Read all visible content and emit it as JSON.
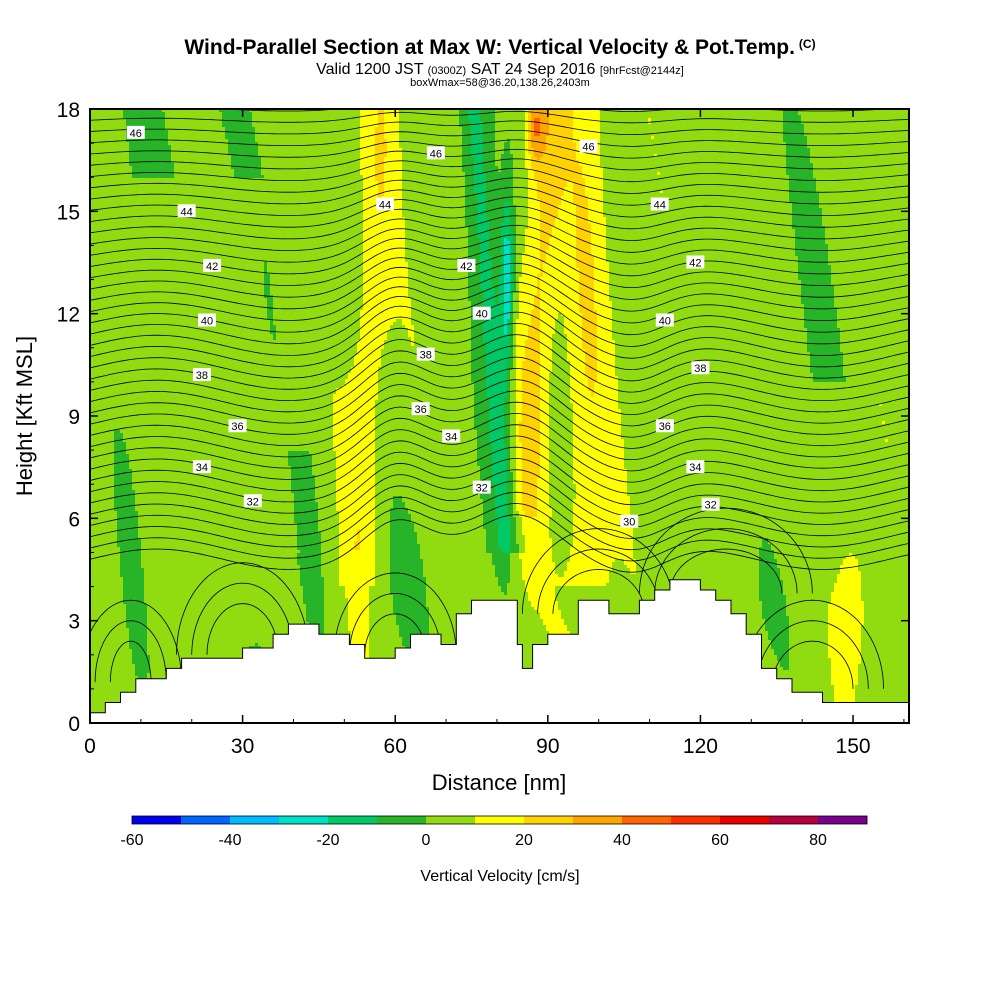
{
  "title": {
    "main": "Wind-Parallel Section at Max W: Vertical Velocity & Pot.Temp.",
    "copyright": "(C)",
    "valid_prefix": "Valid 1200 JST",
    "valid_utc": "(0300Z)",
    "valid_date": "SAT 24 Sep 2016",
    "forecast": "[9hrFcst@2144z]",
    "boxinfo": "boxWmax=58@36.20,138.26,2403m"
  },
  "chart_data": {
    "type": "heatmap",
    "xlabel": "Distance [nm]",
    "ylabel": "Height [Kft MSL]",
    "xlim": [
      0,
      161
    ],
    "ylim": [
      0,
      18
    ],
    "x_ticks": [
      "0",
      "30",
      "60",
      "90",
      "120",
      "150"
    ],
    "y_ticks": [
      "0",
      "3",
      "6",
      "9",
      "12",
      "15",
      "18"
    ],
    "colorbar": {
      "label": "Vertical Velocity [cm/s]",
      "bins": [
        -60,
        -50,
        -40,
        -30,
        -20,
        -10,
        0,
        10,
        20,
        30,
        40,
        50,
        60,
        70,
        80,
        90
      ],
      "tick_labels": [
        "-60",
        "-40",
        "-20",
        "0",
        "20",
        "40",
        "60",
        "80"
      ],
      "colors": [
        "#0000ee",
        "#0066ff",
        "#00bbff",
        "#00e0c8",
        "#00c864",
        "#28b428",
        "#90dc10",
        "#ffff00",
        "#ffd200",
        "#ffa500",
        "#ff6400",
        "#ff2d00",
        "#e60000",
        "#b4003c",
        "#78008c"
      ]
    },
    "terrain": [
      [
        0,
        0.3
      ],
      [
        3,
        0.3
      ],
      [
        3,
        0.6
      ],
      [
        6,
        0.6
      ],
      [
        6,
        0.9
      ],
      [
        9,
        0.9
      ],
      [
        9,
        1.3
      ],
      [
        15,
        1.3
      ],
      [
        15,
        1.6
      ],
      [
        18,
        1.6
      ],
      [
        18,
        1.9
      ],
      [
        30,
        1.9
      ],
      [
        30,
        2.2
      ],
      [
        36,
        2.2
      ],
      [
        36,
        2.6
      ],
      [
        39,
        2.6
      ],
      [
        39,
        2.9
      ],
      [
        45,
        2.9
      ],
      [
        45,
        2.6
      ],
      [
        51,
        2.6
      ],
      [
        51,
        2.3
      ],
      [
        54,
        2.3
      ],
      [
        54,
        1.9
      ],
      [
        60,
        1.9
      ],
      [
        60,
        2.2
      ],
      [
        63,
        2.2
      ],
      [
        63,
        2.6
      ],
      [
        69,
        2.6
      ],
      [
        69,
        2.3
      ],
      [
        72,
        2.3
      ],
      [
        72,
        3.2
      ],
      [
        75,
        3.2
      ],
      [
        75,
        3.6
      ],
      [
        84,
        3.6
      ],
      [
        84,
        2.3
      ],
      [
        85,
        2.3
      ],
      [
        85,
        1.6
      ],
      [
        87,
        1.6
      ],
      [
        87,
        2.3
      ],
      [
        90,
        2.3
      ],
      [
        90,
        2.6
      ],
      [
        96,
        2.6
      ],
      [
        96,
        3.6
      ],
      [
        102,
        3.6
      ],
      [
        102,
        3.2
      ],
      [
        108,
        3.2
      ],
      [
        108,
        3.6
      ],
      [
        111,
        3.6
      ],
      [
        111,
        3.9
      ],
      [
        114,
        3.9
      ],
      [
        114,
        4.2
      ],
      [
        120,
        4.2
      ],
      [
        120,
        3.9
      ],
      [
        123,
        3.9
      ],
      [
        123,
        3.6
      ],
      [
        126,
        3.6
      ],
      [
        126,
        3.2
      ],
      [
        129,
        3.2
      ],
      [
        129,
        2.6
      ],
      [
        132,
        2.6
      ],
      [
        132,
        1.6
      ],
      [
        135,
        1.6
      ],
      [
        135,
        1.3
      ],
      [
        138,
        1.3
      ],
      [
        138,
        0.9
      ],
      [
        144,
        0.9
      ],
      [
        144,
        0.6
      ],
      [
        150,
        0.6
      ],
      [
        150,
        0.6
      ],
      [
        161,
        0.6
      ]
    ],
    "theta_levels": [
      30,
      32,
      34,
      36,
      38,
      40,
      42,
      44,
      46
    ],
    "contour_labels": [
      {
        "t": "46",
        "x": 9,
        "y": 17.3
      },
      {
        "t": "46",
        "x": 68,
        "y": 16.7
      },
      {
        "t": "46",
        "x": 98,
        "y": 16.9
      },
      {
        "t": "44",
        "x": 19,
        "y": 15.0
      },
      {
        "t": "44",
        "x": 58,
        "y": 15.2
      },
      {
        "t": "44",
        "x": 112,
        "y": 15.2
      },
      {
        "t": "42",
        "x": 24,
        "y": 13.4
      },
      {
        "t": "42",
        "x": 74,
        "y": 13.4
      },
      {
        "t": "42",
        "x": 119,
        "y": 13.5
      },
      {
        "t": "40",
        "x": 23,
        "y": 11.8
      },
      {
        "t": "40",
        "x": 77,
        "y": 12.0
      },
      {
        "t": "40",
        "x": 113,
        "y": 11.8
      },
      {
        "t": "38",
        "x": 22,
        "y": 10.2
      },
      {
        "t": "38",
        "x": 66,
        "y": 10.8
      },
      {
        "t": "38",
        "x": 120,
        "y": 10.4
      },
      {
        "t": "36",
        "x": 29,
        "y": 8.7
      },
      {
        "t": "36",
        "x": 65,
        "y": 9.2
      },
      {
        "t": "36",
        "x": 113,
        "y": 8.7
      },
      {
        "t": "34",
        "x": 22,
        "y": 7.5
      },
      {
        "t": "34",
        "x": 71,
        "y": 8.4
      },
      {
        "t": "34",
        "x": 119,
        "y": 7.5
      },
      {
        "t": "32",
        "x": 32,
        "y": 6.5
      },
      {
        "t": "32",
        "x": 77,
        "y": 6.9
      },
      {
        "t": "32",
        "x": 122,
        "y": 6.4
      },
      {
        "t": "30",
        "x": 106,
        "y": 5.9
      }
    ]
  }
}
